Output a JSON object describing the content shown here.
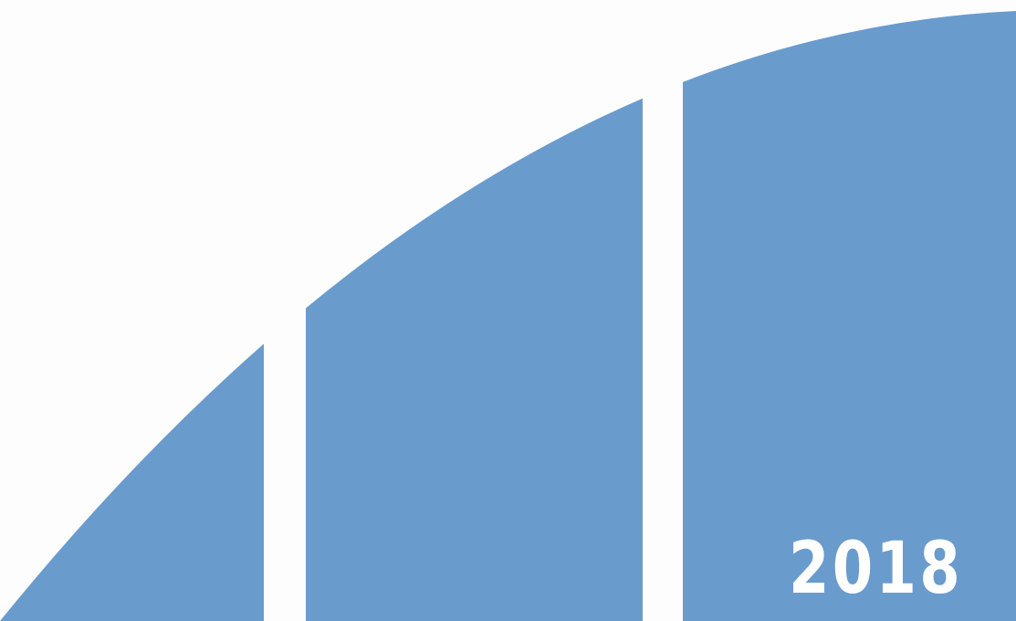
{
  "cover": {
    "year": "2018",
    "colors": {
      "panel_fill": "#6a9bcd",
      "background": "#fdfdfd",
      "year_text": "#ffffff"
    }
  }
}
